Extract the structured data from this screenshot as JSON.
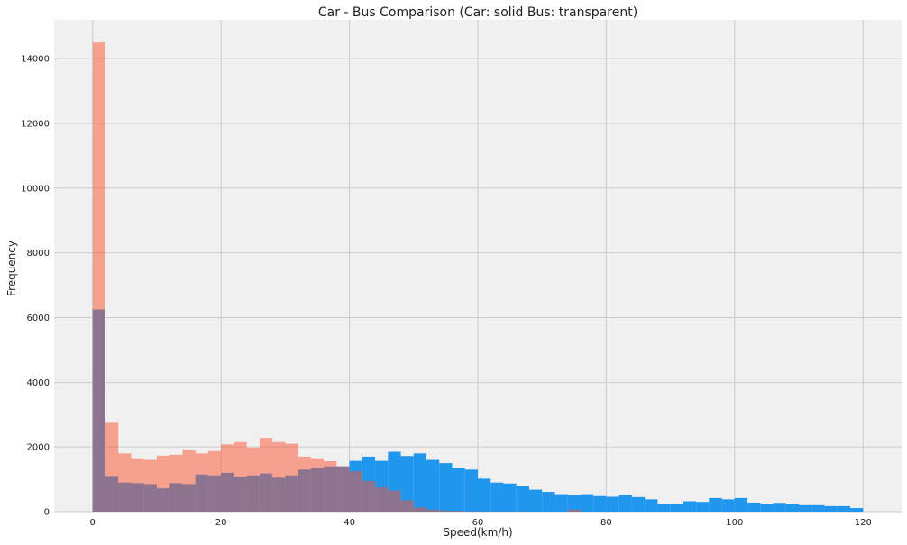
{
  "chart_data": {
    "type": "histogram",
    "title": "Car - Bus Comparison (Car: solid Bus: transparent)",
    "xlabel": "Speed(km/h)",
    "ylabel": "Frequency",
    "xlim": [
      -6,
      126
    ],
    "ylim": [
      0,
      15200
    ],
    "x_ticks": [
      0,
      20,
      40,
      60,
      80,
      100,
      120
    ],
    "x_tick_labels": [
      "0",
      "20",
      "40",
      "60",
      "80",
      "100",
      "120"
    ],
    "y_ticks": [
      0,
      2000,
      4000,
      6000,
      8000,
      10000,
      12000,
      14000
    ],
    "y_tick_labels": [
      "0",
      "2000",
      "4000",
      "6000",
      "8000",
      "10000",
      "12000",
      "14000"
    ],
    "grid": true,
    "bin_width": 2,
    "bin_start": 0,
    "colors": {
      "car": "#2196ee",
      "bus": "#fc4f30",
      "bus_alpha": 0.5,
      "background": "#f0f0f0",
      "grid": "#cbcbcb"
    },
    "series": [
      {
        "key": "car",
        "style": "solid",
        "values": [
          6250,
          1100,
          900,
          880,
          850,
          720,
          880,
          850,
          1150,
          1120,
          1200,
          1080,
          1120,
          1180,
          1050,
          1120,
          1300,
          1350,
          1400,
          1400,
          1570,
          1700,
          1570,
          1850,
          1720,
          1800,
          1600,
          1500,
          1360,
          1300,
          1020,
          900,
          870,
          800,
          680,
          610,
          540,
          510,
          540,
          480,
          460,
          520,
          450,
          380,
          240,
          230,
          320,
          300,
          420,
          380,
          420,
          280,
          250,
          270,
          250,
          200,
          200,
          170,
          170,
          110
        ]
      },
      {
        "key": "bus",
        "style": "transparent",
        "values": [
          14500,
          2750,
          1800,
          1650,
          1600,
          1730,
          1760,
          1920,
          1800,
          1870,
          2080,
          2150,
          1980,
          2280,
          2150,
          2100,
          1700,
          1650,
          1560,
          1400,
          1250,
          950,
          750,
          650,
          350,
          130,
          60,
          30,
          20,
          10,
          5,
          5,
          5,
          5,
          0,
          0,
          0,
          60,
          0,
          0,
          0,
          0,
          0,
          0,
          0,
          0,
          0,
          0,
          0,
          0,
          0,
          0,
          0,
          0,
          0,
          0,
          0,
          0,
          0,
          0
        ]
      }
    ]
  }
}
